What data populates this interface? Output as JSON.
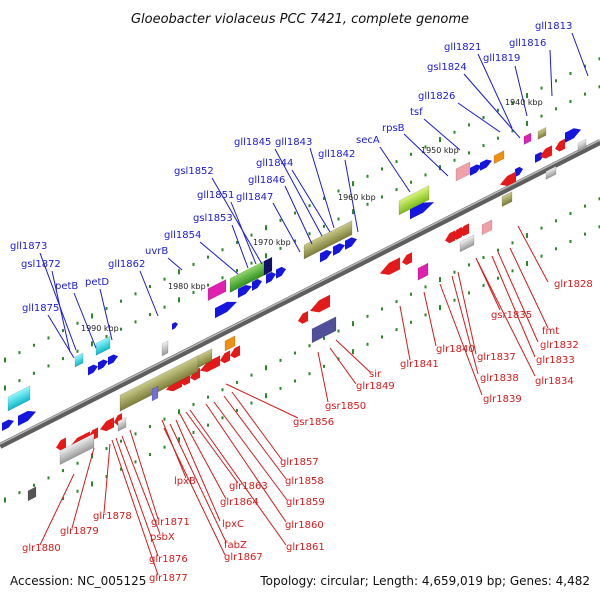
{
  "title": "Gloeobacter violaceus PCC 7421, complete genome",
  "accession": "Accession: NC_005125",
  "summary": "Topology: circular; Length: 4,659,019 bp; Genes: 4,482",
  "kbp_labels": [
    "1940 kbp",
    "1950 kbp",
    "1960 kbp",
    "1970 kbp",
    "1980 kbp",
    "1990 kbp"
  ],
  "forward_genes": [
    "gll1813",
    "gll1816",
    "gll1819",
    "gll1821",
    "gsl1824",
    "gll1826",
    "tsf",
    "rpsB",
    "secA",
    "gll1842",
    "gll1843",
    "gll1844",
    "gll1845",
    "gll1846",
    "gll1847",
    "gsl1852",
    "gll1851",
    "gsl1853",
    "gll1854",
    "uvrB",
    "gll1862",
    "petD",
    "petB",
    "gll1873",
    "gsl1872",
    "gll1875"
  ],
  "reverse_genes": [
    "glr1828",
    "fmt",
    "glr1832",
    "glr1833",
    "glr1834",
    "gsr1835",
    "glr1837",
    "glr1838",
    "glr1839",
    "glr1840",
    "glr1841",
    "sir",
    "glr1849",
    "gsr1850",
    "gsr1856",
    "glr1857",
    "glr1858",
    "glr1859",
    "glr1860",
    "glr1861",
    "glr1863",
    "glr1864",
    "lpxB",
    "lpxC",
    "fabZ",
    "glr1867",
    "glr1871",
    "psbX",
    "glr1876",
    "glr1877",
    "glr1878",
    "glr1879",
    "glr1880"
  ],
  "colors": {
    "backbone": "#6e6e6e",
    "forward_label": "#1a1adb",
    "reverse_label": "#d41a1a",
    "forward_gene": "#1515e0",
    "reverse_gene": "#e41a1a",
    "tick": "#2a8a2a"
  }
}
